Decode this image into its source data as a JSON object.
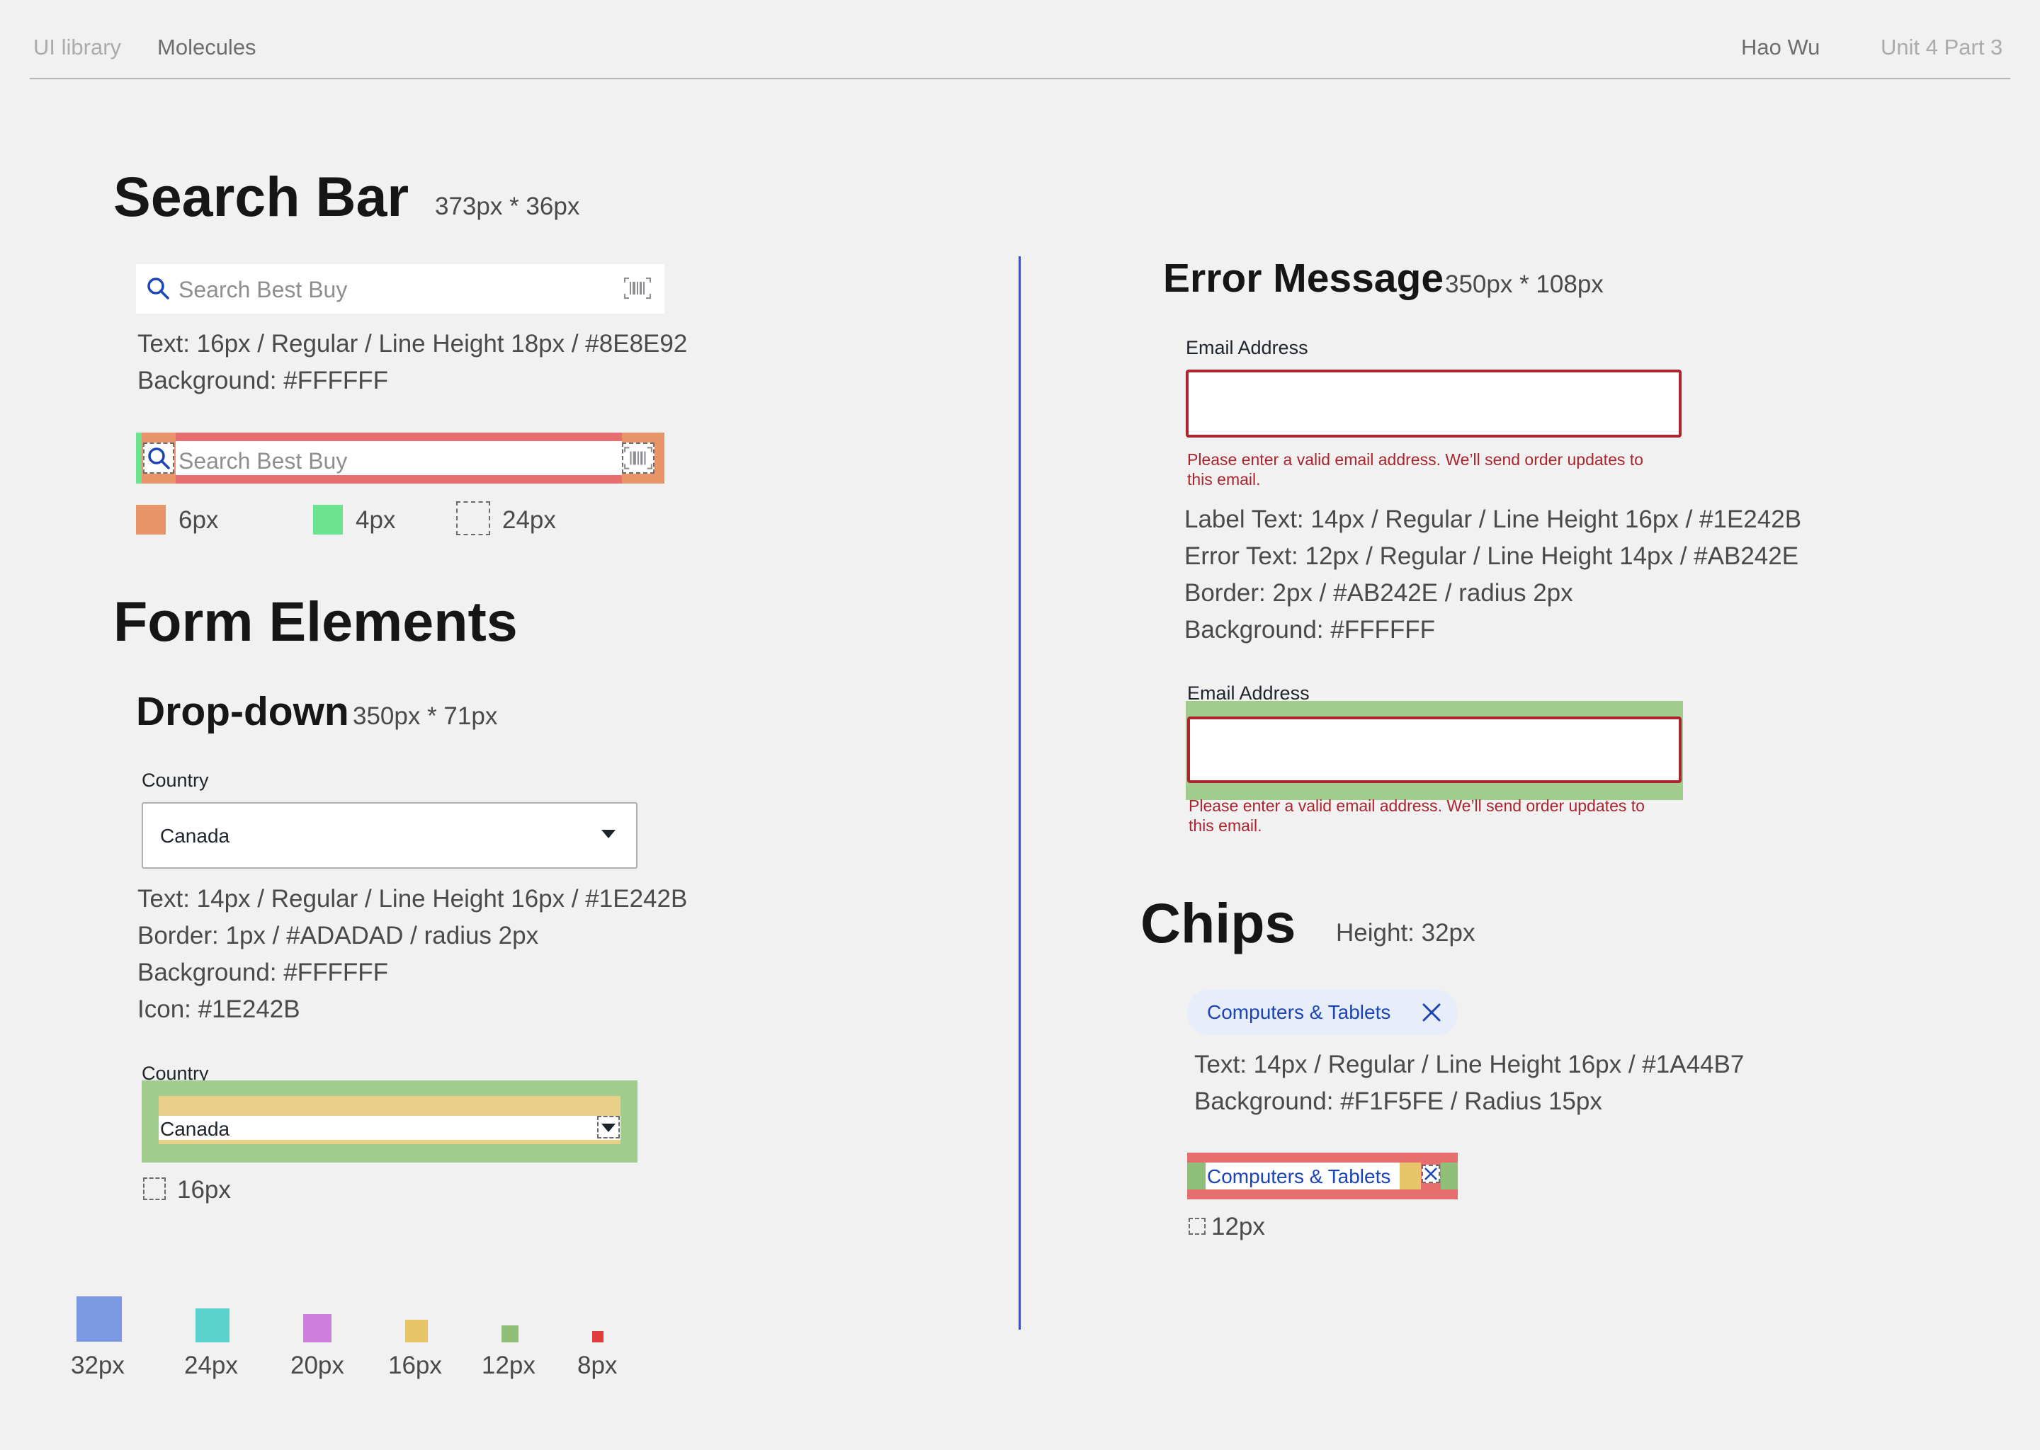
{
  "nav": {
    "left_1": "UI library",
    "left_2": "Molecules",
    "author": "Hao Wu",
    "unit": "Unit 4 Part 3"
  },
  "search_bar": {
    "title": "Search Bar",
    "dims": "373px * 36px",
    "placeholder": "Search Best Buy",
    "specs": [
      "Text: 16px / Regular / Line Height 18px / #8E8E92",
      "Background: #FFFFFF"
    ],
    "legend": [
      {
        "label": "6px",
        "color": "#E8956A"
      },
      {
        "label": "4px",
        "color": "#6CE38E"
      },
      {
        "label": "24px",
        "color": "dashed"
      }
    ]
  },
  "form_elements": {
    "title": "Form Elements",
    "dropdown": {
      "title": "Drop-down",
      "dims": "350px * 71px",
      "label": "Country",
      "value": "Canada",
      "specs": [
        "Text: 14px / Regular / Line Height 16px / #1E242B",
        "Border: 1px / #ADADAD / radius 2px",
        "Background: #FFFFFF",
        "Icon: #1E242B"
      ],
      "spacing_label": "16px"
    }
  },
  "error_message": {
    "title": "Error Message",
    "dims": "350px * 108px",
    "label": "Email Address",
    "error_line_1": "Please enter a valid email address. We’ll send order updates to",
    "error_line_2": "this email.",
    "specs": [
      "Label Text: 14px / Regular / Line Height 16px / #1E242B",
      "Error Text: 12px / Regular / Line Height 14px / #AB242E",
      "Border: 2px / #AB242E / radius 2px",
      "Background: #FFFFFF"
    ]
  },
  "chips": {
    "title": "Chips",
    "dims": "Height: 32px",
    "chip_label": "Computers & Tablets",
    "specs": [
      "Text: 14px / Regular / Line Height 16px / #1A44B7",
      "Background: #F1F5FE / Radius 15px"
    ],
    "spacing_label": "12px"
  },
  "spacing_scale": [
    {
      "label": "32px",
      "color": "#7B98E2"
    },
    {
      "label": "24px",
      "color": "#5BD3CD"
    },
    {
      "label": "20px",
      "color": "#CE7FDC"
    },
    {
      "label": "16px",
      "color": "#E7C66A"
    },
    {
      "label": "12px",
      "color": "#8FBF78"
    },
    {
      "label": "8px",
      "color": "#E13C3C"
    }
  ],
  "colors": {
    "divider": "#3B4FC7",
    "error": "#AB242E",
    "chip_text": "#1A44B7",
    "icon_blue": "#1A44B7"
  },
  "icons": [
    "search-icon",
    "barcode-icon",
    "caret-down-icon",
    "close-icon"
  ]
}
